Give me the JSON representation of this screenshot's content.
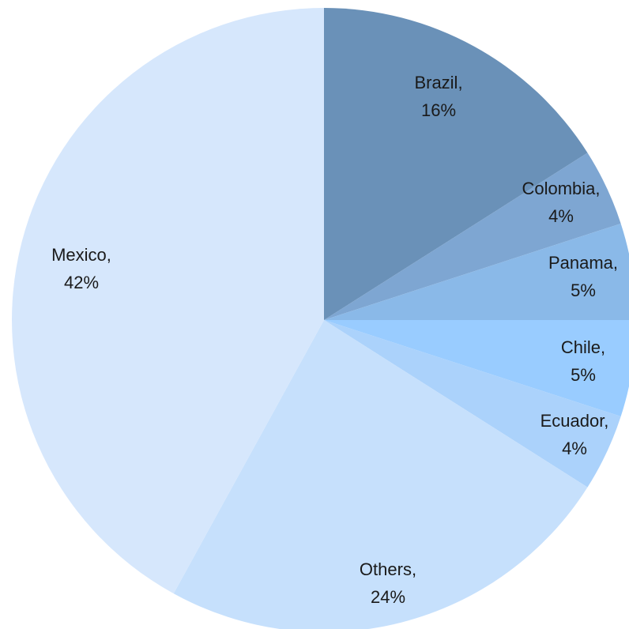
{
  "chart_data": {
    "type": "pie",
    "title": "",
    "slices": [
      {
        "name": "Brazil",
        "value": 16,
        "label_line1": "Brazil,",
        "label_line2": "16%",
        "color": "#6a91b8"
      },
      {
        "name": "Colombia",
        "value": 4,
        "label_line1": "Colombia,",
        "label_line2": "4%",
        "color": "#7ea6d2"
      },
      {
        "name": "Panama",
        "value": 5,
        "label_line1": "Panama,",
        "label_line2": "5%",
        "color": "#8ab9e8"
      },
      {
        "name": "Chile",
        "value": 5,
        "label_line1": "Chile,",
        "label_line2": "5%",
        "color": "#99ccff"
      },
      {
        "name": "Ecuador",
        "value": 4,
        "label_line1": "Ecuador,",
        "label_line2": "4%",
        "color": "#abd2fb"
      },
      {
        "name": "Others",
        "value": 24,
        "label_line1": "Others,",
        "label_line2": "24%",
        "color": "#c6e0fc"
      },
      {
        "name": "Mexico",
        "value": 42,
        "label_line1": "Mexico,",
        "label_line2": "42%",
        "color": "#d6e7fc"
      }
    ],
    "start_angle": "12 o'clock",
    "direction": "clockwise",
    "legend": "none",
    "data_labels": "category and percentage inside slices"
  }
}
